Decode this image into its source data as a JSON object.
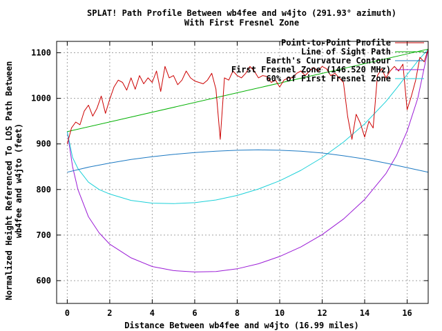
{
  "chart_data": {
    "type": "line",
    "title": "SPLAT! Path Profile Between wb4fee and w4jto (291.93° azimuth)",
    "subtitle": "With First Fresnel Zone",
    "xlabel": "Distance Between wb4fee and w4jto (16.99 miles)",
    "ylabel_line1": "Normalized Height Referenced To LOS Path Between",
    "ylabel_line2": "wb4fee and w4jto (feet)",
    "xlim": [
      -0.5,
      16.99
    ],
    "ylim": [
      550,
      1125
    ],
    "x_ticks": [
      0,
      2,
      4,
      6,
      8,
      10,
      12,
      14,
      16
    ],
    "y_ticks": [
      600,
      700,
      800,
      900,
      1000,
      1100
    ],
    "grid": true,
    "legend_position": "top-right",
    "colors": {
      "profile": "#cc0000",
      "los": "#00b000",
      "curvature": "#1a78c2",
      "fresnel": "#9a1ad6",
      "fresnel60": "#1ad0d8"
    },
    "series": [
      {
        "key": "profile",
        "name": "Point-to-Point Profile",
        "x": [
          0,
          0.2,
          0.4,
          0.6,
          0.8,
          1.0,
          1.2,
          1.4,
          1.6,
          1.8,
          2.0,
          2.2,
          2.4,
          2.6,
          2.8,
          3.0,
          3.2,
          3.4,
          3.6,
          3.8,
          4.0,
          4.2,
          4.4,
          4.6,
          4.8,
          5.0,
          5.2,
          5.4,
          5.6,
          5.8,
          6.0,
          6.2,
          6.4,
          6.6,
          6.8,
          7.0,
          7.2,
          7.4,
          7.6,
          7.8,
          8.0,
          8.2,
          8.4,
          8.6,
          8.8,
          9.0,
          9.2,
          9.4,
          9.6,
          9.8,
          10.0,
          10.2,
          10.4,
          10.6,
          10.8,
          11.0,
          11.2,
          11.4,
          11.6,
          11.8,
          12.0,
          12.2,
          12.4,
          12.6,
          12.8,
          13.0,
          13.2,
          13.4,
          13.6,
          13.8,
          14.0,
          14.2,
          14.4,
          14.6,
          14.8,
          15.0,
          15.2,
          15.4,
          15.6,
          15.8,
          16.0,
          16.2,
          16.4,
          16.6,
          16.8,
          16.99
        ],
        "y": [
          900,
          935,
          948,
          942,
          972,
          985,
          961,
          978,
          1005,
          967,
          998,
          1025,
          1040,
          1035,
          1018,
          1045,
          1020,
          1050,
          1032,
          1045,
          1035,
          1060,
          1015,
          1070,
          1045,
          1050,
          1030,
          1040,
          1060,
          1045,
          1038,
          1035,
          1032,
          1040,
          1055,
          1020,
          910,
          1045,
          1040,
          1060,
          1050,
          1045,
          1055,
          1070,
          1060,
          1045,
          1050,
          1048,
          1035,
          1040,
          1025,
          1040,
          1045,
          1045,
          1055,
          1060,
          1050,
          1060,
          1068,
          1060,
          1070,
          1065,
          1050,
          1055,
          1045,
          1035,
          960,
          910,
          965,
          945,
          915,
          950,
          935,
          1050,
          1065,
          1045,
          1060,
          1070,
          1060,
          1075,
          975,
          1005,
          1040,
          1090,
          1080,
          1108
        ],
        "values": null
      },
      {
        "key": "los",
        "name": "Line of Sight Path",
        "x": [
          0,
          16.99
        ],
        "y": [
          927,
          1108
        ],
        "values": null
      },
      {
        "key": "curvature",
        "name": "Earth's Curvature Contour",
        "x": [
          0,
          1,
          2,
          3,
          4,
          5,
          6,
          7,
          8,
          9,
          10,
          11,
          12,
          13,
          14,
          15,
          16,
          16.99
        ],
        "y": [
          838,
          849,
          858,
          866,
          872,
          877,
          881,
          884,
          886,
          887,
          886,
          884,
          880,
          874,
          867,
          858,
          848,
          838
        ],
        "values": null
      },
      {
        "key": "fresnel",
        "name": "First Fresnel Zone (146.520 MHz)",
        "x": [
          0,
          0.25,
          0.5,
          1,
          1.5,
          2,
          3,
          4,
          5,
          6,
          7,
          8,
          9,
          10,
          11,
          12,
          13,
          14,
          15,
          15.5,
          16,
          16.5,
          16.99
        ],
        "y": [
          927,
          850,
          800,
          740,
          705,
          680,
          650,
          631,
          622,
          619,
          620,
          626,
          637,
          653,
          674,
          701,
          735,
          778,
          835,
          875,
          928,
          1000,
          1108
        ],
        "values": null
      },
      {
        "key": "fresnel60",
        "name": "60% of First Fresnel Zone",
        "x": [
          0,
          0.25,
          0.5,
          1,
          1.5,
          2,
          3,
          4,
          5,
          6,
          7,
          8,
          9,
          10,
          11,
          12,
          13,
          14,
          15,
          15.5,
          16,
          16.5,
          16.99
        ],
        "y": [
          927,
          870,
          846,
          816,
          800,
          790,
          776,
          770,
          769,
          771,
          777,
          787,
          801,
          819,
          842,
          870,
          904,
          944,
          993,
          1022,
          1052,
          1082,
          1108
        ],
        "values": null
      }
    ]
  }
}
